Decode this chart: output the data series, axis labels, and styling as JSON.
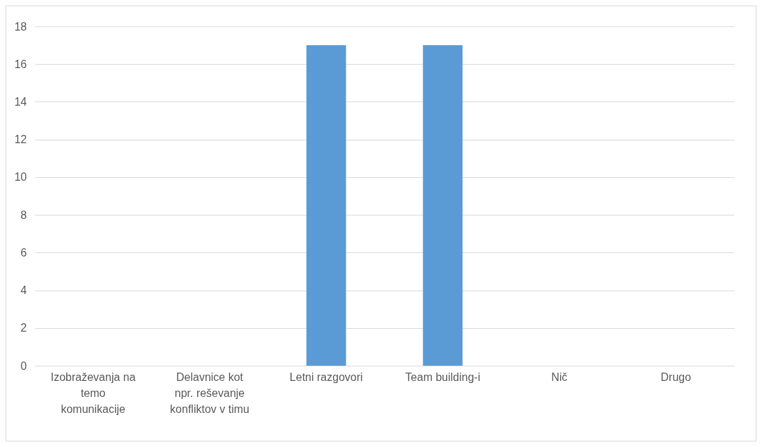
{
  "chart_data": {
    "type": "bar",
    "categories": [
      "Izobraževanja na temo komunikacije",
      "Delavnice kot npr. reševanje konfliktov v timu",
      "Letni razgovori",
      "Team building-i",
      "Nič",
      "Drugo"
    ],
    "values": [
      0,
      0,
      17,
      17,
      0,
      0
    ],
    "color": "#5b9bd5",
    "ylim": [
      0,
      18
    ],
    "yticks": [
      0,
      2,
      4,
      6,
      8,
      10,
      12,
      14,
      16,
      18
    ],
    "grid": "y"
  }
}
